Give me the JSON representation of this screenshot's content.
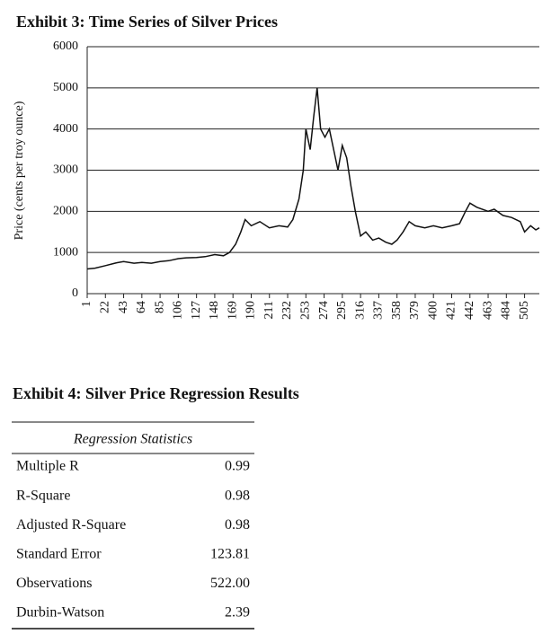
{
  "chart_data": {
    "type": "line",
    "title": "Exhibit 3: Time Series of Silver Prices",
    "y_label": "Price (cents per troy ounce)",
    "x": [
      1,
      10,
      22,
      35,
      43,
      55,
      64,
      75,
      85,
      95,
      106,
      115,
      127,
      137,
      148,
      158,
      165,
      172,
      178,
      183,
      190,
      200,
      211,
      222,
      232,
      238,
      245,
      250,
      253,
      258,
      262,
      266,
      270,
      275,
      280,
      285,
      290,
      295,
      300,
      305,
      310,
      316,
      322,
      330,
      337,
      345,
      352,
      358,
      365,
      372,
      379,
      390,
      400,
      410,
      421,
      430,
      437,
      442,
      450,
      463,
      470,
      480,
      490,
      500,
      505,
      512,
      518,
      522
    ],
    "series": [
      {
        "name": "Silver price",
        "color": "#111111",
        "values": [
          600,
          620,
          680,
          750,
          780,
          740,
          760,
          740,
          780,
          800,
          850,
          870,
          880,
          900,
          950,
          920,
          1000,
          1200,
          1500,
          1800,
          1650,
          1750,
          1600,
          1650,
          1620,
          1800,
          2300,
          3000,
          4000,
          3500,
          4300,
          5000,
          4000,
          3800,
          4000,
          3500,
          3000,
          3600,
          3300,
          2600,
          2000,
          1400,
          1500,
          1300,
          1350,
          1250,
          1200,
          1300,
          1500,
          1750,
          1650,
          1600,
          1650,
          1600,
          1650,
          1700,
          2000,
          2200,
          2100,
          2000,
          2050,
          1900,
          1850,
          1750,
          1500,
          1650,
          1550,
          1600
        ]
      }
    ],
    "xlim": [
      1,
      522
    ],
    "xticks": [
      1,
      22,
      43,
      64,
      85,
      106,
      127,
      148,
      169,
      190,
      211,
      232,
      253,
      274,
      295,
      316,
      337,
      358,
      379,
      400,
      421,
      442,
      463,
      484,
      505
    ],
    "ylim": [
      0,
      6000
    ],
    "yticks": [
      0,
      1000,
      2000,
      3000,
      4000,
      5000,
      6000
    ],
    "grid": true
  },
  "table": {
    "title": "Exhibit 4: Silver Price Regression Results",
    "header": "Regression Statistics",
    "rows": [
      [
        "Multiple R",
        "0.99"
      ],
      [
        "R-Square",
        "0.98"
      ],
      [
        "Adjusted R-Square",
        "0.98"
      ],
      [
        "Standard Error",
        "123.81"
      ],
      [
        "Observations",
        "522.00"
      ],
      [
        "Durbin-Watson",
        "2.39"
      ]
    ]
  }
}
